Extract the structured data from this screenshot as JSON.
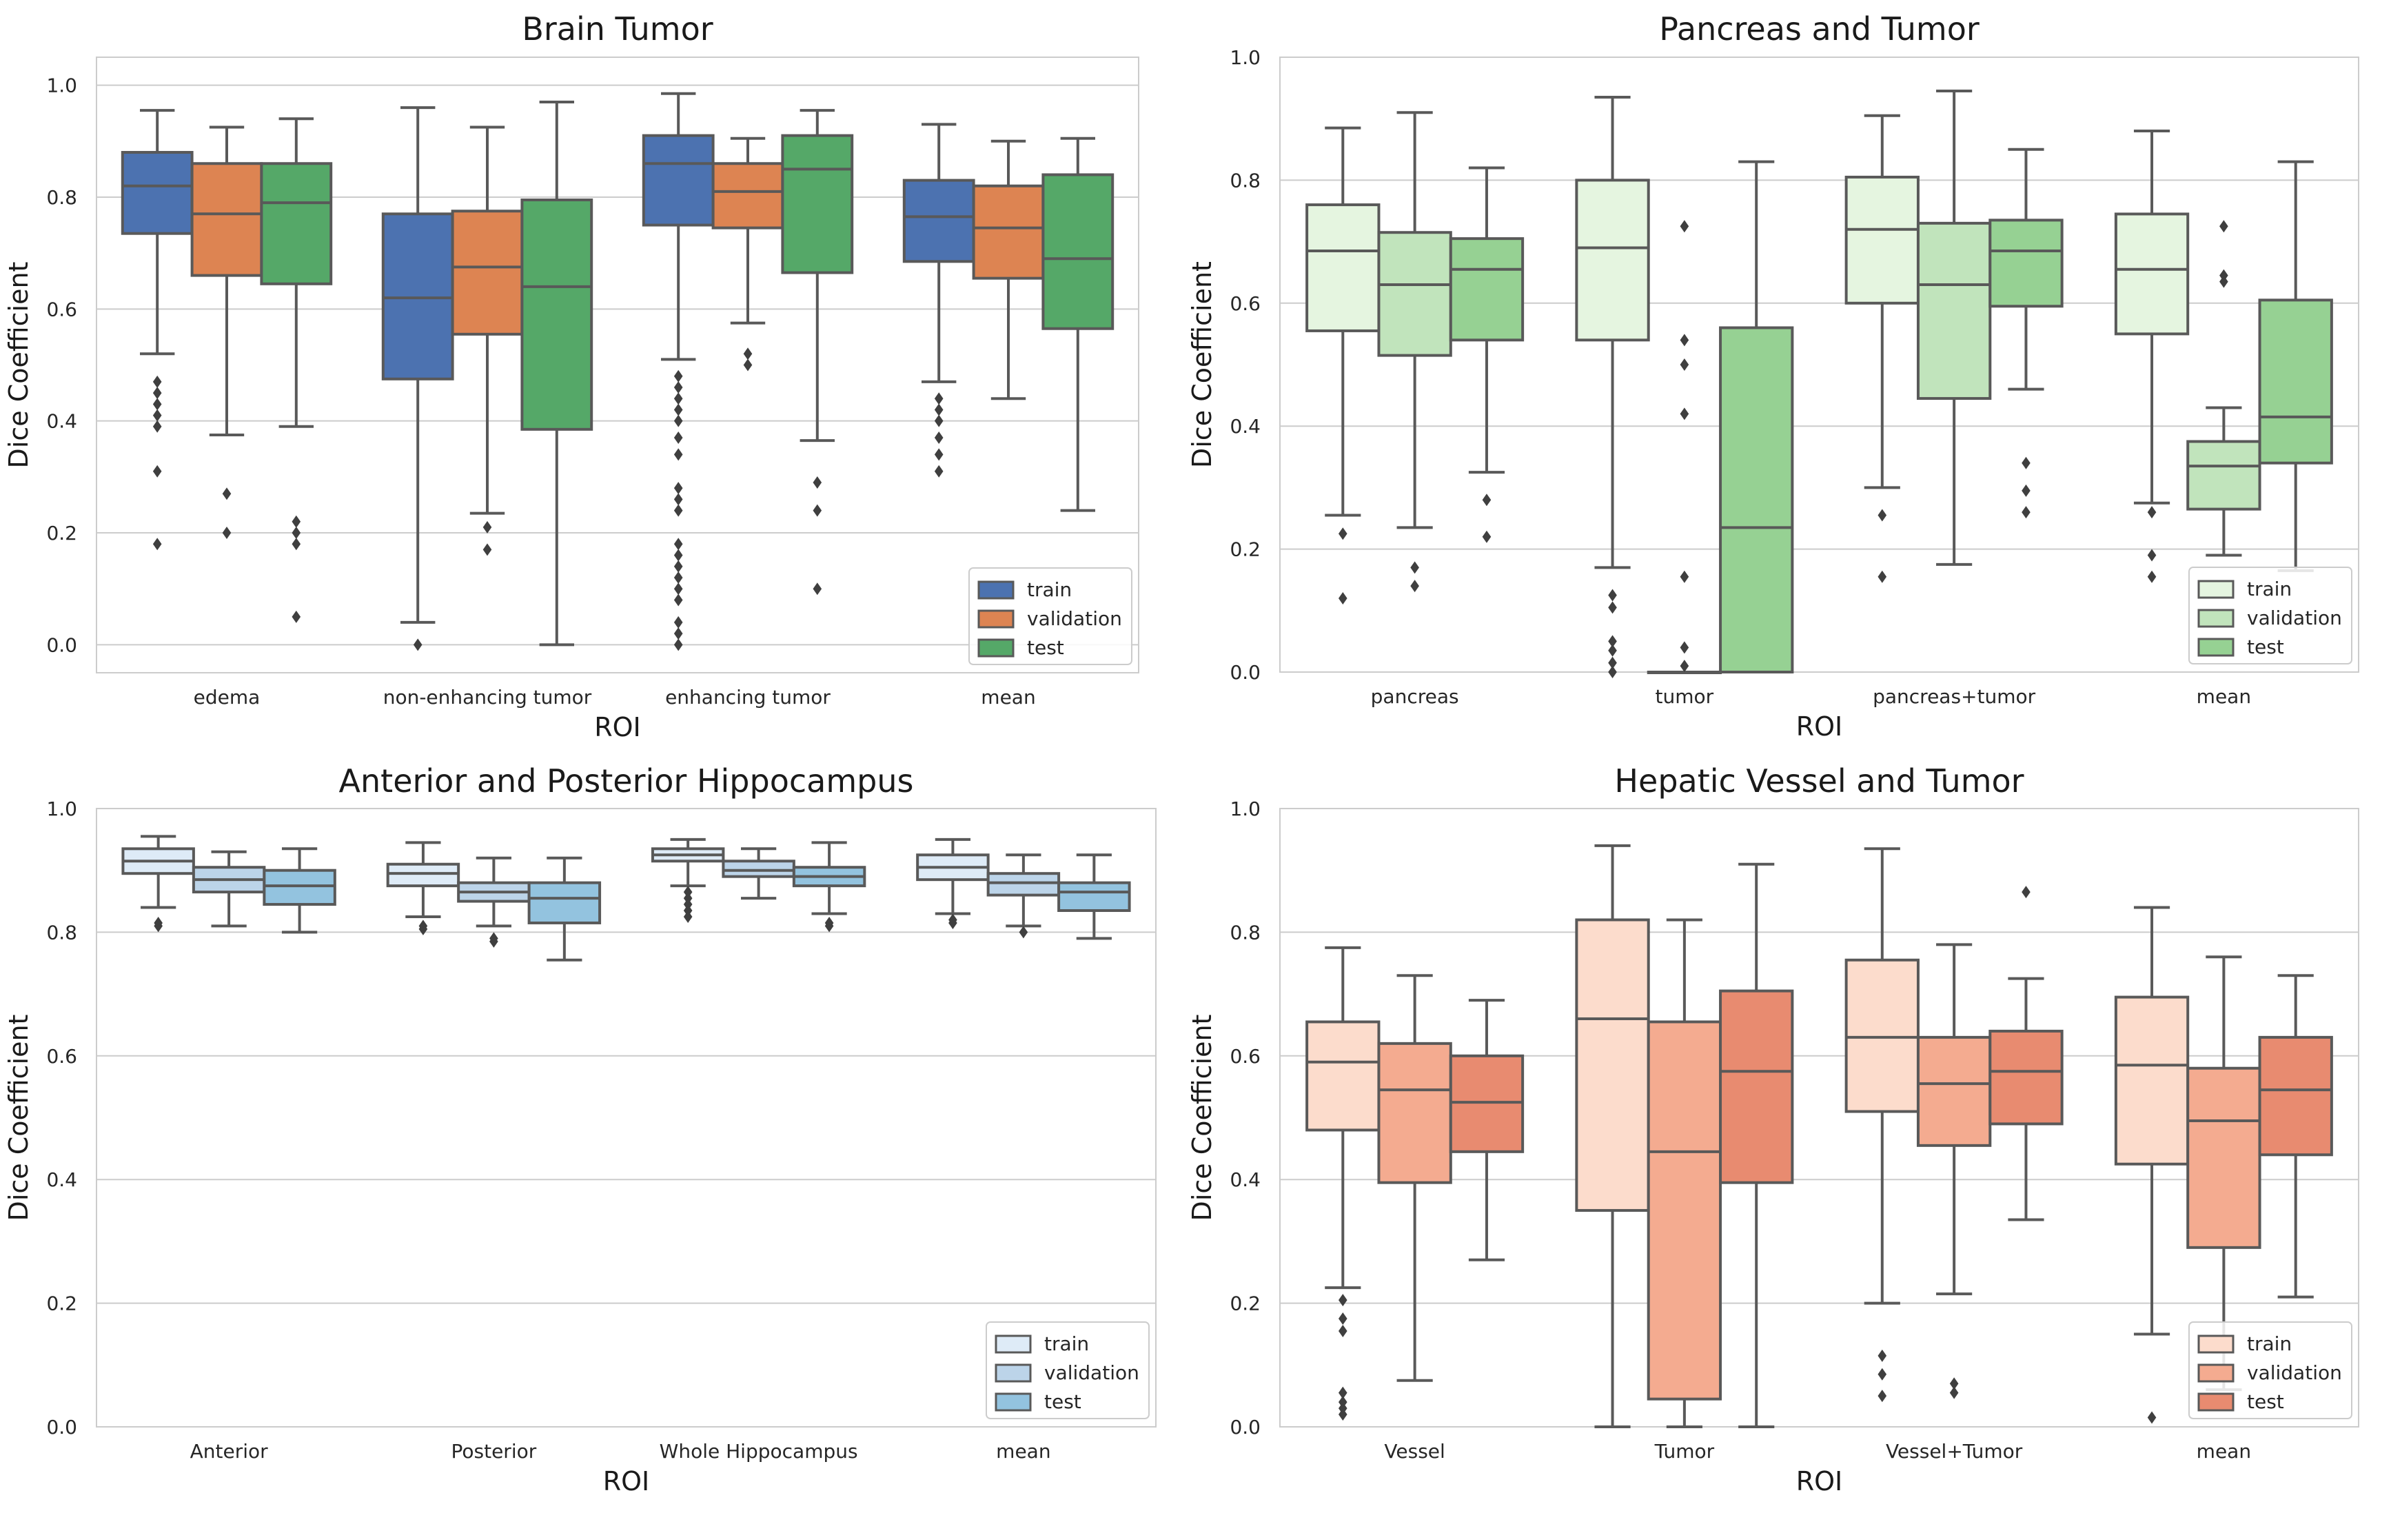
{
  "figure": {
    "background": "#ffffff",
    "style": "seaborn whitegrid",
    "box_edge_color": "#595959"
  },
  "chart_data": [
    {
      "type": "box",
      "title": "Brain Tumor",
      "xlabel": "ROI",
      "ylabel": "Dice Coefficient",
      "ylim": [
        -0.05,
        1.05
      ],
      "yticks": [
        "0.0",
        "0.2",
        "0.4",
        "0.6",
        "0.8",
        "1.0"
      ],
      "grid": "horizontal",
      "legend_position": "lower-right",
      "categories": [
        "edema",
        "non-enhancing tumor",
        "enhancing tumor",
        "mean"
      ],
      "series": [
        {
          "name": "train",
          "color": "#4c72b0",
          "boxes": [
            {
              "whislo": 0.52,
              "q1": 0.735,
              "med": 0.82,
              "q3": 0.88,
              "whishi": 0.955,
              "fliers": [
                0.47,
                0.45,
                0.43,
                0.41,
                0.39,
                0.31,
                0.18
              ]
            },
            {
              "whislo": 0.04,
              "q1": 0.475,
              "med": 0.62,
              "q3": 0.77,
              "whishi": 0.96,
              "fliers": [
                0.0
              ]
            },
            {
              "whislo": 0.51,
              "q1": 0.75,
              "med": 0.86,
              "q3": 0.91,
              "whishi": 0.985,
              "fliers": [
                0.48,
                0.46,
                0.44,
                0.42,
                0.4,
                0.37,
                0.34,
                0.28,
                0.26,
                0.24,
                0.18,
                0.16,
                0.14,
                0.12,
                0.1,
                0.08,
                0.04,
                0.02,
                0.0
              ]
            },
            {
              "whislo": 0.47,
              "q1": 0.685,
              "med": 0.765,
              "q3": 0.83,
              "whishi": 0.93,
              "fliers": [
                0.44,
                0.42,
                0.4,
                0.37,
                0.34,
                0.31
              ]
            }
          ]
        },
        {
          "name": "validation",
          "color": "#dd8452",
          "boxes": [
            {
              "whislo": 0.375,
              "q1": 0.66,
              "med": 0.77,
              "q3": 0.86,
              "whishi": 0.925,
              "fliers": [
                0.27,
                0.2
              ]
            },
            {
              "whislo": 0.235,
              "q1": 0.555,
              "med": 0.675,
              "q3": 0.775,
              "whishi": 0.925,
              "fliers": [
                0.21,
                0.17
              ]
            },
            {
              "whislo": 0.575,
              "q1": 0.745,
              "med": 0.81,
              "q3": 0.86,
              "whishi": 0.905,
              "fliers": [
                0.52,
                0.5
              ]
            },
            {
              "whislo": 0.44,
              "q1": 0.655,
              "med": 0.745,
              "q3": 0.82,
              "whishi": 0.9,
              "fliers": []
            }
          ]
        },
        {
          "name": "test",
          "color": "#55a868",
          "boxes": [
            {
              "whislo": 0.39,
              "q1": 0.645,
              "med": 0.79,
              "q3": 0.86,
              "whishi": 0.94,
              "fliers": [
                0.22,
                0.2,
                0.18,
                0.05
              ]
            },
            {
              "whislo": 0.0,
              "q1": 0.385,
              "med": 0.64,
              "q3": 0.795,
              "whishi": 0.97,
              "fliers": []
            },
            {
              "whislo": 0.365,
              "q1": 0.665,
              "med": 0.85,
              "q3": 0.91,
              "whishi": 0.955,
              "fliers": [
                0.29,
                0.24,
                0.1
              ]
            },
            {
              "whislo": 0.24,
              "q1": 0.565,
              "med": 0.69,
              "q3": 0.84,
              "whishi": 0.905,
              "fliers": []
            }
          ]
        }
      ]
    },
    {
      "type": "box",
      "title": "Pancreas and Tumor",
      "xlabel": "ROI",
      "ylabel": "Dice Coefficient",
      "ylim": [
        0.0,
        1.0
      ],
      "yticks": [
        "0.0",
        "0.2",
        "0.4",
        "0.6",
        "0.8",
        "1.0"
      ],
      "grid": "horizontal",
      "legend_position": "lower-right",
      "categories": [
        "pancreas",
        "tumor",
        "pancreas+tumor",
        "mean"
      ],
      "series": [
        {
          "name": "train",
          "color": "#e5f5e0",
          "boxes": [
            {
              "whislo": 0.255,
              "q1": 0.555,
              "med": 0.685,
              "q3": 0.76,
              "whishi": 0.885,
              "fliers": [
                0.225,
                0.12
              ]
            },
            {
              "whislo": 0.17,
              "q1": 0.54,
              "med": 0.69,
              "q3": 0.8,
              "whishi": 0.935,
              "fliers": [
                0.125,
                0.105,
                0.05,
                0.035,
                0.015,
                0.0
              ]
            },
            {
              "whislo": 0.3,
              "q1": 0.6,
              "med": 0.72,
              "q3": 0.805,
              "whishi": 0.905,
              "fliers": [
                0.255,
                0.155
              ]
            },
            {
              "whislo": 0.275,
              "q1": 0.55,
              "med": 0.655,
              "q3": 0.745,
              "whishi": 0.88,
              "fliers": [
                0.26,
                0.19,
                0.155
              ]
            }
          ]
        },
        {
          "name": "validation",
          "color": "#c1e4bc",
          "boxes": [
            {
              "whislo": 0.235,
              "q1": 0.515,
              "med": 0.63,
              "q3": 0.715,
              "whishi": 0.91,
              "fliers": [
                0.17,
                0.14
              ]
            },
            {
              "whislo": 0.0,
              "q1": 0.0,
              "med": 0.0,
              "q3": 0.0,
              "whishi": 0.0,
              "fliers": [
                0.725,
                0.54,
                0.5,
                0.42,
                0.155,
                0.04,
                0.01
              ]
            },
            {
              "whislo": 0.175,
              "q1": 0.445,
              "med": 0.63,
              "q3": 0.73,
              "whishi": 0.945,
              "fliers": []
            },
            {
              "whislo": 0.19,
              "q1": 0.265,
              "med": 0.335,
              "q3": 0.375,
              "whishi": 0.43,
              "fliers": [
                0.725,
                0.645,
                0.635
              ]
            }
          ]
        },
        {
          "name": "test",
          "color": "#96d193",
          "boxes": [
            {
              "whislo": 0.325,
              "q1": 0.54,
              "med": 0.655,
              "q3": 0.705,
              "whishi": 0.82,
              "fliers": [
                0.28,
                0.22
              ]
            },
            {
              "whislo": 0.0,
              "q1": 0.0,
              "med": 0.235,
              "q3": 0.56,
              "whishi": 0.83,
              "fliers": []
            },
            {
              "whislo": 0.46,
              "q1": 0.595,
              "med": 0.685,
              "q3": 0.735,
              "whishi": 0.85,
              "fliers": [
                0.34,
                0.295,
                0.26
              ]
            },
            {
              "whislo": 0.165,
              "q1": 0.34,
              "med": 0.415,
              "q3": 0.605,
              "whishi": 0.83,
              "fliers": []
            }
          ]
        }
      ]
    },
    {
      "type": "box",
      "title": "Anterior and Posterior Hippocampus",
      "xlabel": "ROI",
      "ylabel": "Dice Coefficient",
      "ylim": [
        0.0,
        1.0
      ],
      "yticks": [
        "0.0",
        "0.2",
        "0.4",
        "0.6",
        "0.8",
        "1.0"
      ],
      "grid": "horizontal",
      "legend_position": "lower-right",
      "categories": [
        "Anterior",
        "Posterior",
        "Whole Hippocampus",
        "mean"
      ],
      "series": [
        {
          "name": "train",
          "color": "#deebf7",
          "boxes": [
            {
              "whislo": 0.84,
              "q1": 0.895,
              "med": 0.915,
              "q3": 0.935,
              "whishi": 0.955,
              "fliers": [
                0.815,
                0.81
              ]
            },
            {
              "whislo": 0.825,
              "q1": 0.875,
              "med": 0.895,
              "q3": 0.91,
              "whishi": 0.945,
              "fliers": [
                0.81,
                0.805
              ]
            },
            {
              "whislo": 0.875,
              "q1": 0.915,
              "med": 0.925,
              "q3": 0.935,
              "whishi": 0.95,
              "fliers": [
                0.865,
                0.855,
                0.845,
                0.835,
                0.825
              ]
            },
            {
              "whislo": 0.83,
              "q1": 0.885,
              "med": 0.905,
              "q3": 0.925,
              "whishi": 0.95,
              "fliers": [
                0.82,
                0.815
              ]
            }
          ]
        },
        {
          "name": "validation",
          "color": "#bcd4e9",
          "boxes": [
            {
              "whislo": 0.81,
              "q1": 0.865,
              "med": 0.885,
              "q3": 0.905,
              "whishi": 0.93,
              "fliers": []
            },
            {
              "whislo": 0.81,
              "q1": 0.85,
              "med": 0.865,
              "q3": 0.88,
              "whishi": 0.92,
              "fliers": [
                0.79,
                0.785
              ]
            },
            {
              "whislo": 0.855,
              "q1": 0.89,
              "med": 0.9,
              "q3": 0.915,
              "whishi": 0.935,
              "fliers": []
            },
            {
              "whislo": 0.81,
              "q1": 0.86,
              "med": 0.88,
              "q3": 0.895,
              "whishi": 0.925,
              "fliers": [
                0.8
              ]
            }
          ]
        },
        {
          "name": "test",
          "color": "#93c3df",
          "boxes": [
            {
              "whislo": 0.8,
              "q1": 0.845,
              "med": 0.875,
              "q3": 0.9,
              "whishi": 0.935,
              "fliers": []
            },
            {
              "whislo": 0.755,
              "q1": 0.815,
              "med": 0.855,
              "q3": 0.88,
              "whishi": 0.92,
              "fliers": []
            },
            {
              "whislo": 0.83,
              "q1": 0.875,
              "med": 0.89,
              "q3": 0.905,
              "whishi": 0.945,
              "fliers": [
                0.815,
                0.81
              ]
            },
            {
              "whislo": 0.79,
              "q1": 0.835,
              "med": 0.865,
              "q3": 0.88,
              "whishi": 0.925,
              "fliers": []
            }
          ]
        }
      ]
    },
    {
      "type": "box",
      "title": "Hepatic Vessel and Tumor",
      "xlabel": "ROI",
      "ylabel": "Dice Coefficient",
      "ylim": [
        0.0,
        1.0
      ],
      "yticks": [
        "0.0",
        "0.2",
        "0.4",
        "0.6",
        "0.8",
        "1.0"
      ],
      "grid": "horizontal",
      "legend_position": "lower-right",
      "categories": [
        "Vessel",
        "Tumor",
        "Vessel+Tumor",
        "mean"
      ],
      "series": [
        {
          "name": "train",
          "color": "#fcdccc",
          "boxes": [
            {
              "whislo": 0.225,
              "q1": 0.48,
              "med": 0.59,
              "q3": 0.655,
              "whishi": 0.775,
              "fliers": [
                0.205,
                0.175,
                0.155,
                0.055,
                0.04,
                0.03,
                0.02
              ]
            },
            {
              "whislo": 0.0,
              "q1": 0.35,
              "med": 0.66,
              "q3": 0.82,
              "whishi": 0.94,
              "fliers": []
            },
            {
              "whislo": 0.2,
              "q1": 0.51,
              "med": 0.63,
              "q3": 0.755,
              "whishi": 0.935,
              "fliers": [
                0.115,
                0.085,
                0.05
              ]
            },
            {
              "whislo": 0.15,
              "q1": 0.425,
              "med": 0.585,
              "q3": 0.695,
              "whishi": 0.84,
              "fliers": [
                0.015
              ]
            }
          ]
        },
        {
          "name": "validation",
          "color": "#f4ab90",
          "boxes": [
            {
              "whislo": 0.075,
              "q1": 0.395,
              "med": 0.545,
              "q3": 0.62,
              "whishi": 0.73,
              "fliers": []
            },
            {
              "whislo": 0.0,
              "q1": 0.045,
              "med": 0.445,
              "q3": 0.655,
              "whishi": 0.82,
              "fliers": []
            },
            {
              "whislo": 0.215,
              "q1": 0.455,
              "med": 0.555,
              "q3": 0.63,
              "whishi": 0.78,
              "fliers": [
                0.07,
                0.055
              ]
            },
            {
              "whislo": 0.06,
              "q1": 0.29,
              "med": 0.495,
              "q3": 0.58,
              "whishi": 0.76,
              "fliers": []
            }
          ]
        },
        {
          "name": "test",
          "color": "#e88b70",
          "boxes": [
            {
              "whislo": 0.27,
              "q1": 0.445,
              "med": 0.525,
              "q3": 0.6,
              "whishi": 0.69,
              "fliers": []
            },
            {
              "whislo": 0.0,
              "q1": 0.395,
              "med": 0.575,
              "q3": 0.705,
              "whishi": 0.91,
              "fliers": []
            },
            {
              "whislo": 0.335,
              "q1": 0.49,
              "med": 0.575,
              "q3": 0.64,
              "whishi": 0.725,
              "fliers": [
                0.865
              ]
            },
            {
              "whislo": 0.21,
              "q1": 0.44,
              "med": 0.545,
              "q3": 0.63,
              "whishi": 0.73,
              "fliers": []
            }
          ]
        }
      ]
    }
  ]
}
